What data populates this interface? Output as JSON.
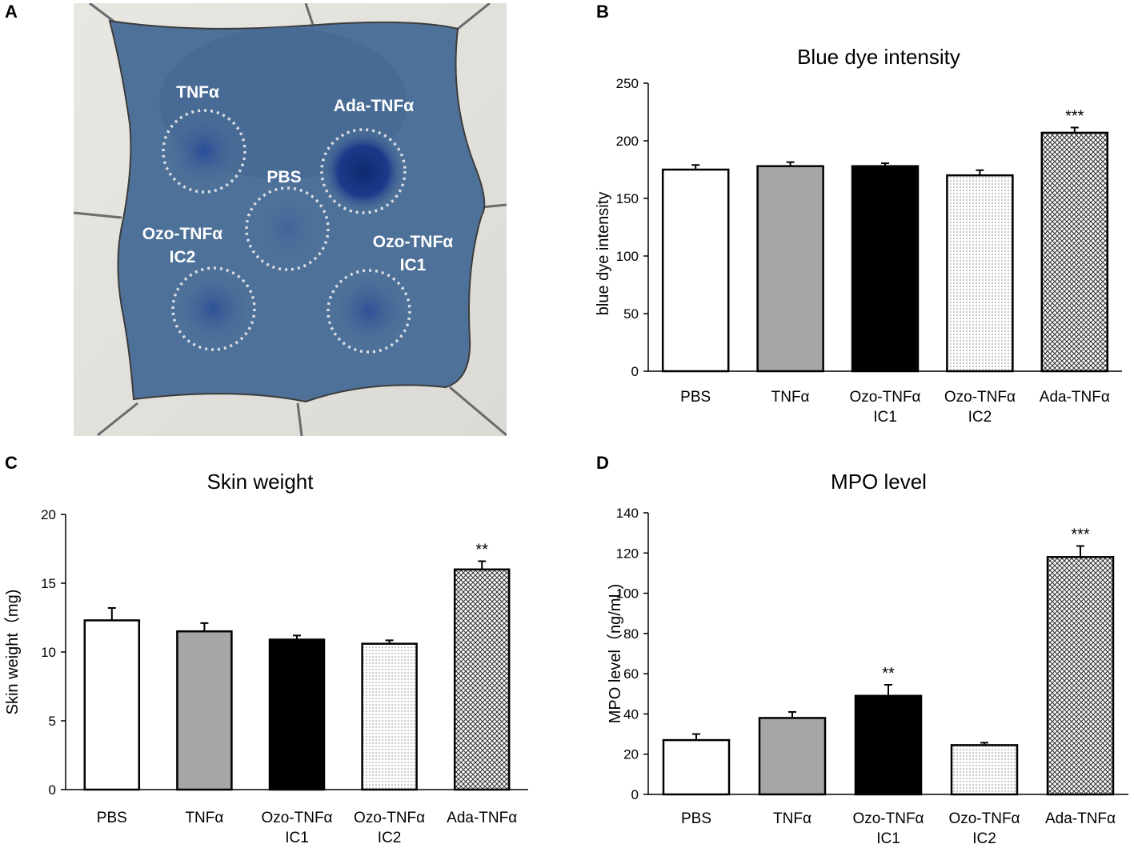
{
  "panels": {
    "a_letter": "A",
    "b_letter": "B",
    "c_letter": "C",
    "d_letter": "D"
  },
  "photo": {
    "description_labels": {
      "tnfa": "TNFα",
      "ada": "Ada-TNFα",
      "pbs": "PBS",
      "ozo2_line1": "Ozo-TNFα",
      "ozo2_line2": "IC2",
      "ozo1_line1": "Ozo-TNFα",
      "ozo1_line2": "IC1"
    },
    "colors": {
      "skin": "#4c6f98",
      "background": "#e6e4df",
      "dye": "#13317c",
      "circle": "#d9dde3"
    }
  },
  "colors": {
    "tnfa_fill": "#a6a6a6",
    "ic1_fill": "#000000",
    "axis": "#000000"
  },
  "chart_data": [
    {
      "id": "blue",
      "type": "bar",
      "title": "Blue dye intensity",
      "xlabel": "",
      "ylabel": "blue dye intensity",
      "ylim": [
        0,
        250
      ],
      "yticks": [
        0,
        50,
        100,
        150,
        200,
        250
      ],
      "categories": [
        [
          "PBS"
        ],
        [
          "TNFα"
        ],
        [
          "Ozo-TNFα",
          "IC1"
        ],
        [
          "Ozo-TNFα",
          "IC2"
        ],
        [
          "Ada-TNFα"
        ]
      ],
      "values": [
        175,
        178,
        178,
        170,
        207
      ],
      "errors": [
        4,
        3.5,
        2.5,
        4.5,
        4.5
      ],
      "annotations": [
        "",
        "",
        "",
        "",
        "***"
      ]
    },
    {
      "id": "skin",
      "type": "bar",
      "title": "Skin weight",
      "xlabel": "",
      "ylabel": "Skin weight（mg)",
      "ylim": [
        0,
        20
      ],
      "yticks": [
        0,
        5,
        10,
        15,
        20
      ],
      "categories": [
        [
          "PBS"
        ],
        [
          "TNFα"
        ],
        [
          "Ozo-TNFα",
          "IC1"
        ],
        [
          "Ozo-TNFα",
          "IC2"
        ],
        [
          "Ada-TNFα"
        ]
      ],
      "values": [
        12.3,
        11.5,
        10.9,
        10.6,
        16.0
      ],
      "errors": [
        0.9,
        0.6,
        0.3,
        0.25,
        0.6
      ],
      "annotations": [
        "",
        "",
        "",
        "",
        "**"
      ]
    },
    {
      "id": "mpo",
      "type": "bar",
      "title": "MPO level",
      "xlabel": "",
      "ylabel": "MPO level（ng/mL)",
      "ylim": [
        0,
        140
      ],
      "yticks": [
        0,
        20,
        40,
        60,
        80,
        100,
        120,
        140
      ],
      "categories": [
        [
          "PBS"
        ],
        [
          "TNFα"
        ],
        [
          "Ozo-TNFα",
          "IC1"
        ],
        [
          "Ozo-TNFα",
          "IC2"
        ],
        [
          "Ada-TNFα"
        ]
      ],
      "values": [
        27,
        38,
        49,
        24.5,
        118
      ],
      "errors": [
        3,
        3,
        5.5,
        1.2,
        5.5
      ],
      "annotations": [
        "",
        "",
        "**",
        "",
        "***"
      ]
    }
  ]
}
